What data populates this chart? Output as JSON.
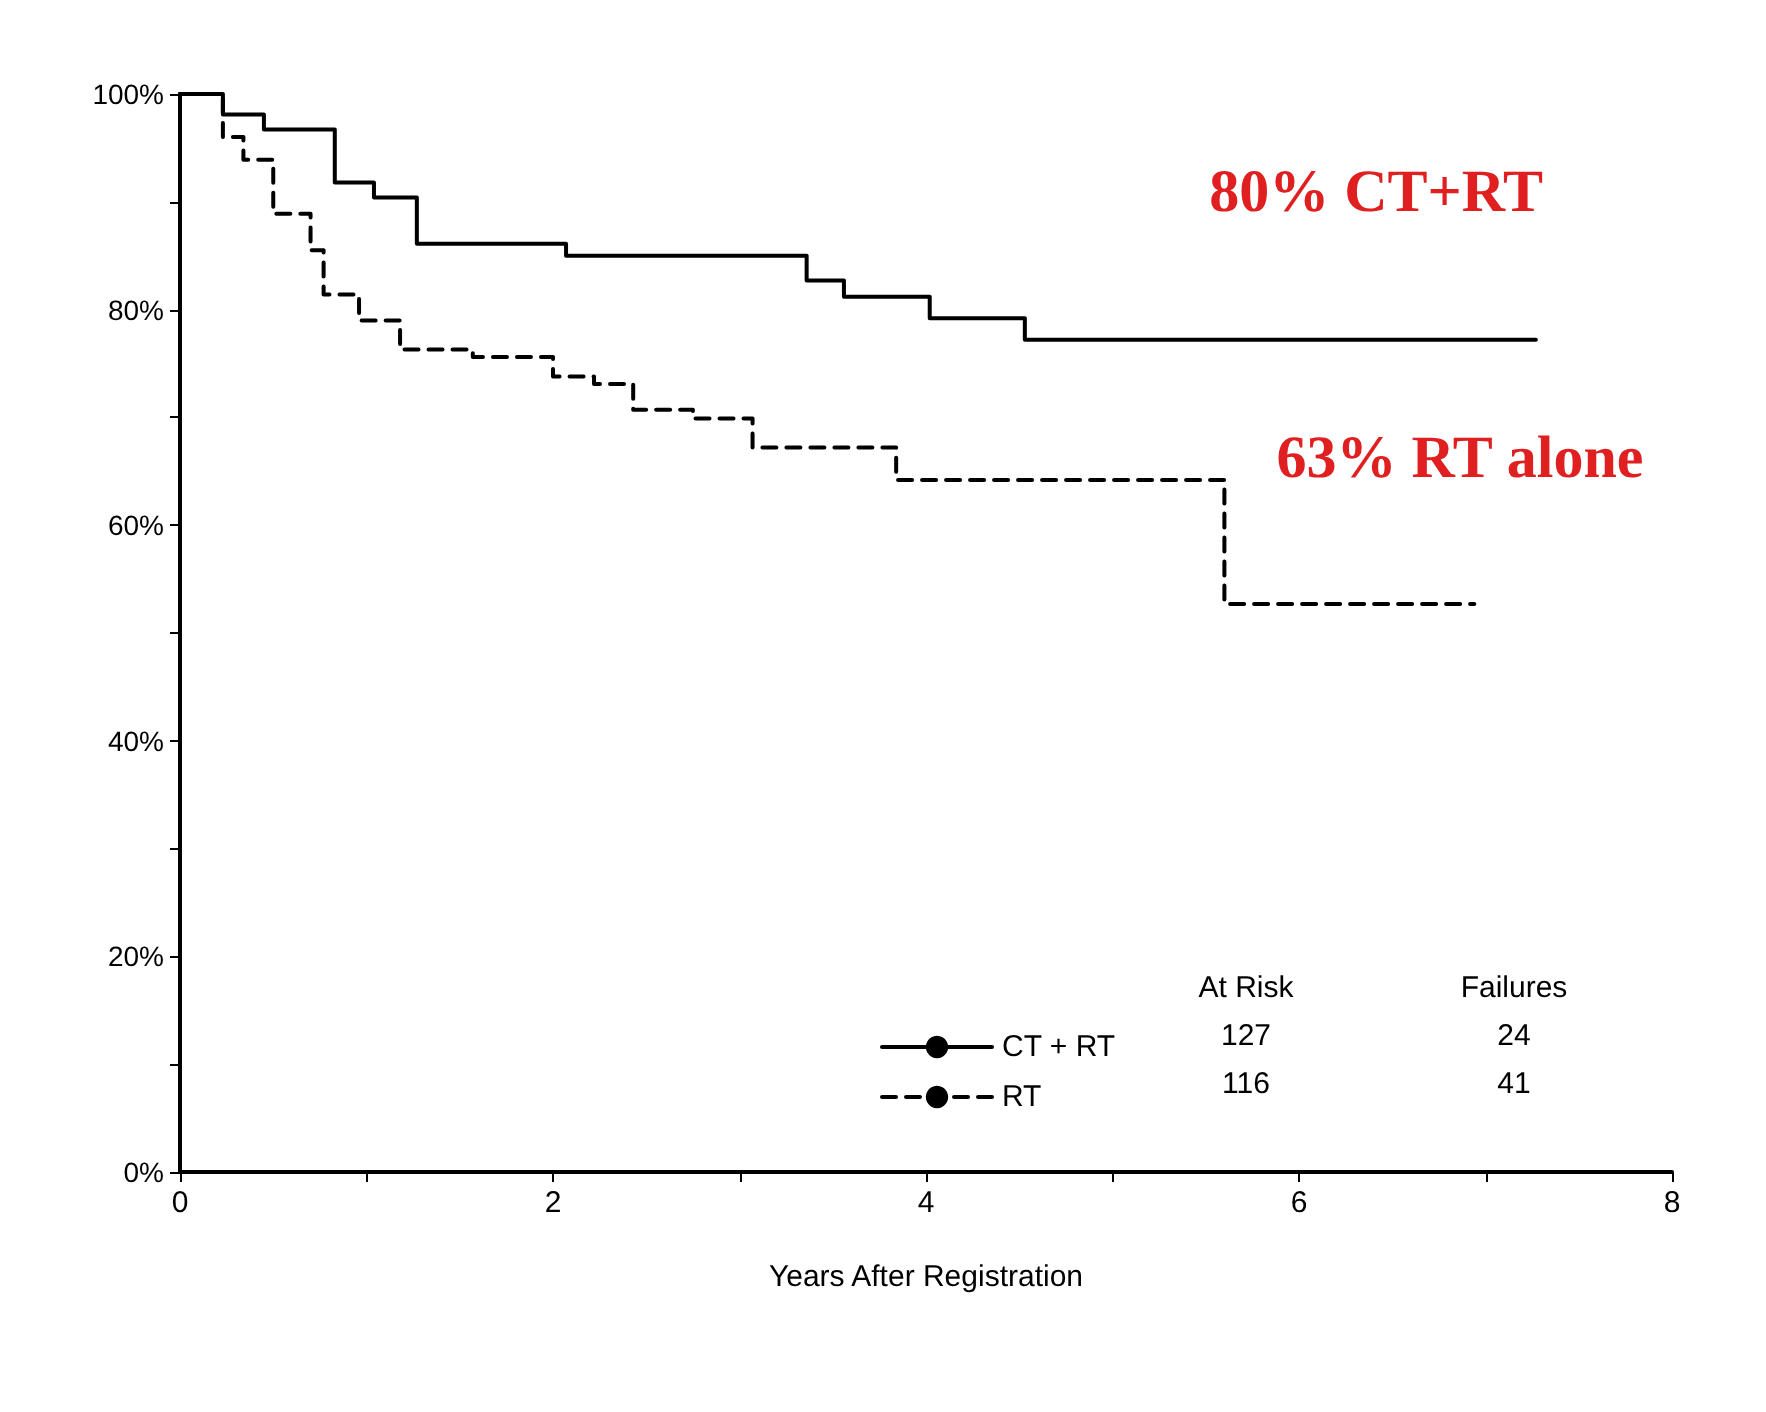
{
  "chart_data": {
    "type": "step",
    "xlabel": "Years After Registration",
    "xlim": [
      0,
      8
    ],
    "xticks": [
      0,
      {
        "value": 1,
        "label": null
      },
      2,
      {
        "value": 3,
        "label": null
      },
      4,
      {
        "value": 5,
        "label": null
      },
      6,
      {
        "value": 7,
        "label": null
      },
      8
    ],
    "ylim": [
      0,
      100
    ],
    "yticks": [
      {
        "value": 0,
        "label": "0%"
      },
      {
        "value": 10,
        "label": null
      },
      {
        "value": 20,
        "label": "20%"
      },
      {
        "value": 30,
        "label": null
      },
      {
        "value": 40,
        "label": "40%"
      },
      {
        "value": 50,
        "label": null
      },
      {
        "value": 60,
        "label": "60%"
      },
      {
        "value": 70,
        "label": null
      },
      {
        "value": 80,
        "label": "80%"
      },
      {
        "value": 90,
        "label": null
      },
      {
        "value": 100,
        "label": "100%"
      }
    ],
    "series": [
      {
        "name": "CT + RT",
        "color": "#000000",
        "line_style": "solid",
        "x": [
          0,
          0.23,
          0.45,
          0.83,
          1.04,
          1.27,
          2.07,
          3.36,
          3.56,
          4.02,
          4.53,
          7.27
        ],
        "values": [
          100,
          98.1,
          96.7,
          91.8,
          90.4,
          86.1,
          85.0,
          82.7,
          81.2,
          79.2,
          77.2,
          77.2
        ]
      },
      {
        "name": "RT",
        "color": "#000000",
        "line_style": "dashed",
        "x": [
          0,
          0.23,
          0.34,
          0.5,
          0.7,
          0.77,
          0.96,
          1.18,
          1.57,
          2.0,
          2.22,
          2.43,
          2.75,
          3.07,
          3.84,
          5.6,
          6.94
        ],
        "values": [
          100,
          96,
          93.9,
          88.9,
          85.5,
          81.4,
          79.0,
          76.3,
          75.6,
          73.8,
          73.1,
          70.7,
          69.9,
          67.2,
          64.2,
          52.7,
          52.7
        ]
      }
    ],
    "annotations": [
      "80% CT+RT",
      "63% RT alone",
      "At Risk",
      "Failures",
      "127",
      "24",
      "116",
      "41"
    ],
    "grid": false,
    "marker": "none",
    "legend": "bottom right"
  }
}
